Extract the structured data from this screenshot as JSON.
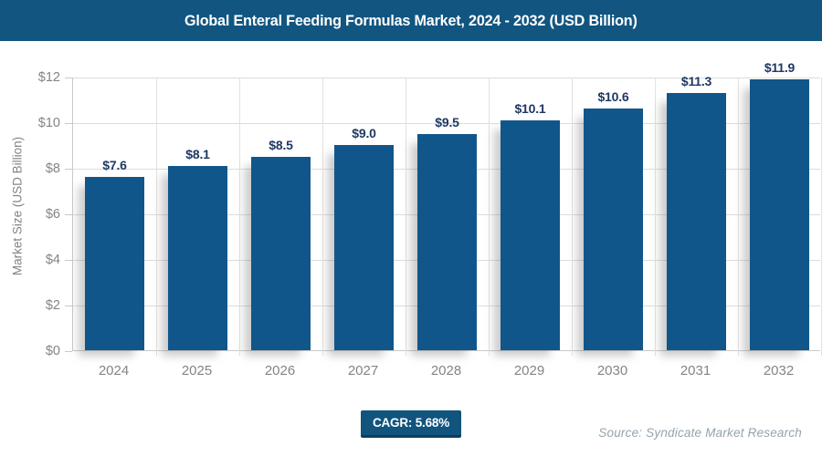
{
  "header": {
    "title": "Global Enteral Feeding Formulas Market, 2024 - 2032 (USD Billion)"
  },
  "chart_data": {
    "type": "bar",
    "title": "Global Enteral Feeding Formulas Market, 2024 - 2032 (USD Billion)",
    "categories": [
      "2024",
      "2025",
      "2026",
      "2027",
      "2028",
      "2029",
      "2030",
      "2031",
      "2032"
    ],
    "values": [
      7.6,
      8.1,
      8.5,
      9.0,
      9.5,
      10.1,
      10.6,
      11.3,
      11.9
    ],
    "value_labels": [
      "$7.6",
      "$8.1",
      "$8.5",
      "$9.0",
      "$9.5",
      "$10.1",
      "$10.6",
      "$11.3",
      "$11.9"
    ],
    "xlabel": "",
    "ylabel": "Market Size (USD Billion)",
    "ylim": [
      0,
      12
    ],
    "ytick_step": 2,
    "ytick_labels": [
      "$0",
      "$2",
      "$4",
      "$6",
      "$8",
      "$10",
      "$12"
    ],
    "grid": true,
    "legend": "none",
    "bar_color": "#10568B",
    "value_label_color": "#1F3864"
  },
  "footer": {
    "cagr_label": "CAGR: 5.68%",
    "source": "Source: Syndicate Market Research"
  },
  "colors": {
    "header_bg": "#115580",
    "badge_bg": "#11547E",
    "badge_border": "#0B3D5F",
    "bar": "#10568B",
    "value_label": "#1F3864",
    "tick_text": "#848484",
    "gridline": "#DCDCDC",
    "source_text": "#93A3AE"
  }
}
